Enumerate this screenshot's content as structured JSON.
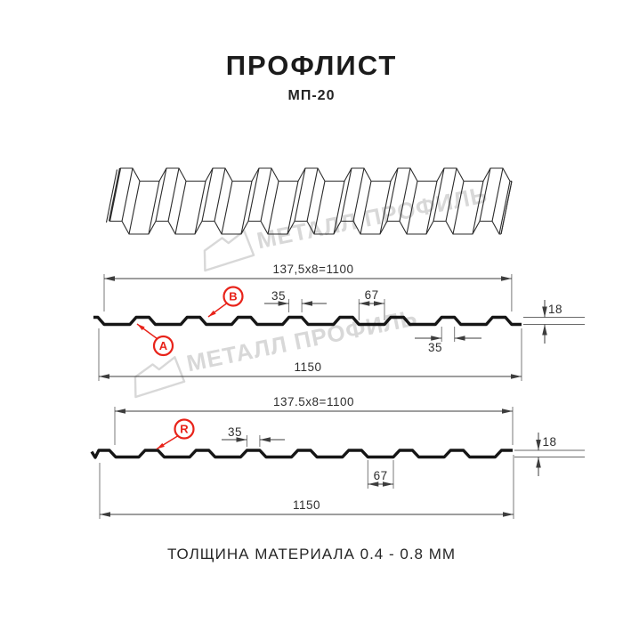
{
  "header": {
    "title": "ПРОФЛИСТ",
    "subtitle": "МП-20"
  },
  "watermark": {
    "brand": "МЕТАЛЛ ПРОФИЛЬ",
    "logo_icon": "metall-profil-banner-icon"
  },
  "diagram": {
    "top_section": {
      "width_formula": "137,5x8=1100",
      "overall_width": "1150",
      "rib_top_width": "35",
      "rib_bottom_width": "67",
      "rib_top_width_lower": "35",
      "profile_height": "18",
      "label_a": "A",
      "label_b": "B"
    },
    "bottom_section": {
      "width_formula": "137.5x8=1100",
      "overall_width": "1150",
      "rib_top_width": "35",
      "rib_bottom_width": "67",
      "profile_height": "18",
      "label_r": "R"
    }
  },
  "footer": {
    "material_note": "ТОЛЩИНА МАТЕРИАЛА 0.4 - 0.8 ММ"
  },
  "colors": {
    "accent_red": "#e8231a",
    "line_dark": "#161616",
    "dim_line": "#3d3d3d",
    "watermark_gray": "#d8d8d8",
    "background": "#ffffff"
  }
}
